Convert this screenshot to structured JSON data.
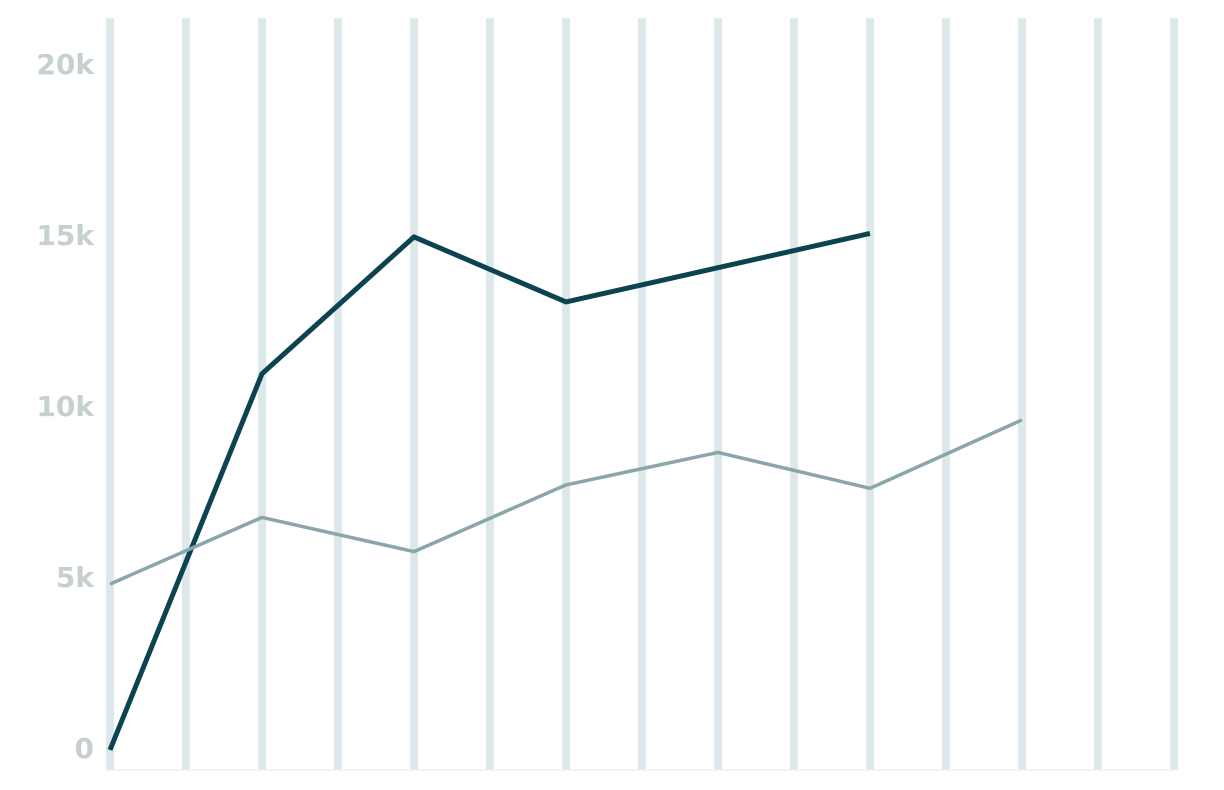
{
  "chart_data": {
    "type": "line",
    "categories": [
      null,
      null,
      null,
      null,
      null,
      null,
      null
    ],
    "series": [
      {
        "color": "#0b4450",
        "values": [
          0,
          11000,
          15000,
          13100,
          14100,
          15100,
          null
        ]
      },
      {
        "color": "#8aa6ab",
        "values": [
          4850,
          6800,
          5800,
          7750,
          8700,
          7650,
          9650
        ]
      }
    ],
    "ylim": [
      -585,
      21400
    ],
    "yticks": [
      0,
      {
        "value": 5000,
        "label": "5k"
      },
      {
        "value": 10000,
        "label": "10k"
      },
      {
        "value": 15000,
        "label": "15k"
      },
      {
        "value": 20000,
        "label": "20k"
      }
    ],
    "grid": true,
    "grid_color": "#dce8e9"
  }
}
